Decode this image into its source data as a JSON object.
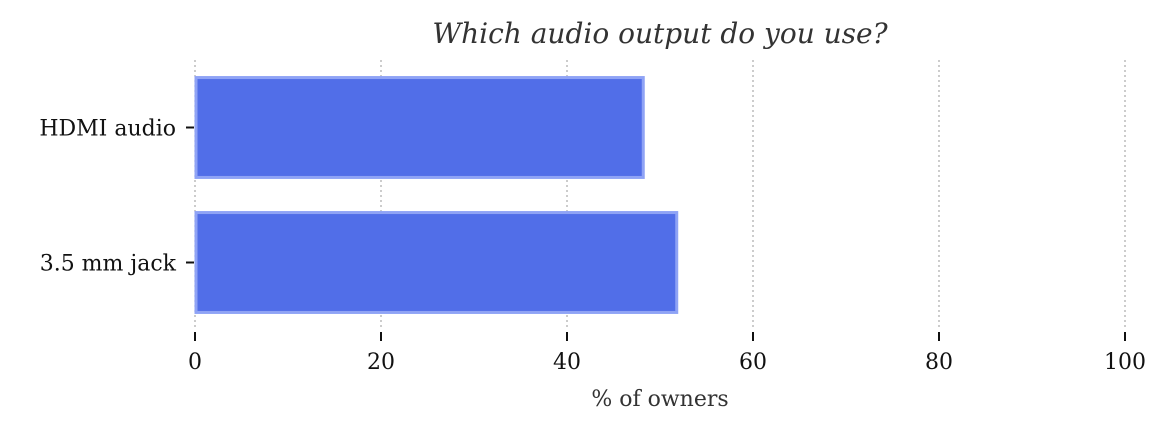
{
  "chart_data": {
    "type": "bar",
    "orientation": "horizontal",
    "title": "Which audio output do you use?",
    "xlabel": "% of owners",
    "ylabel": "",
    "categories": [
      "HDMI audio",
      "3.5 mm jack"
    ],
    "values": [
      48.2,
      51.8
    ],
    "xlim": [
      0,
      100
    ],
    "xticks": [
      0,
      20,
      40,
      60,
      80,
      100
    ],
    "grid": "x, dotted",
    "legend": "none",
    "bar_color": "#516EE8",
    "bar_edge_color": "#8FA3F5"
  }
}
